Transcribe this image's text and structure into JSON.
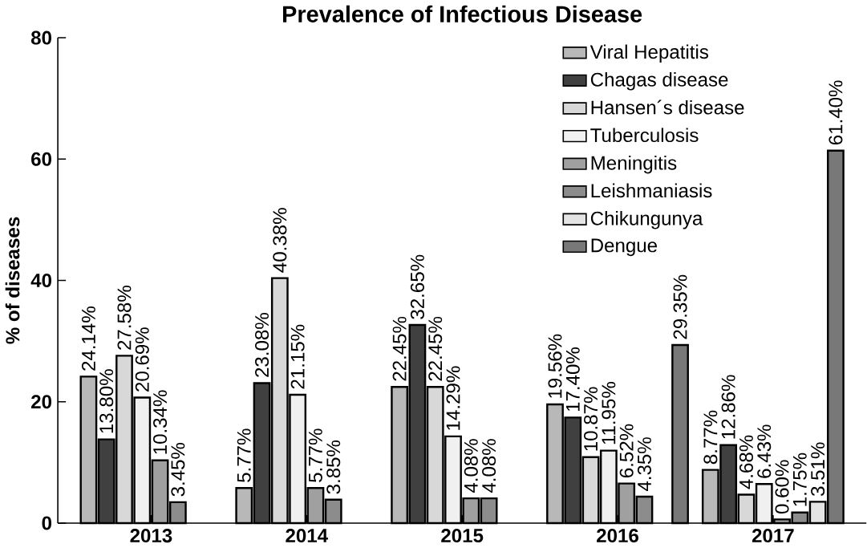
{
  "chart_data": {
    "type": "bar",
    "title": "Prevalence of Infectious Disease",
    "ylabel": "% of diseases",
    "categories": [
      "2013",
      "2014",
      "2015",
      "2016",
      "2017"
    ],
    "series": [
      {
        "name": "Viral Hepatitis",
        "color": "#b8b8b8",
        "values": [
          24.14,
          5.77,
          22.45,
          19.56,
          8.77
        ],
        "value_labels": [
          "24.14%",
          "5.77%",
          "22.45%",
          "19.56%",
          "8.77%"
        ]
      },
      {
        "name": "Chagas disease",
        "color": "#404040",
        "values": [
          13.8,
          23.08,
          32.65,
          17.4,
          12.86
        ],
        "value_labels": [
          "13.80%",
          "23.08%",
          "32.65%",
          "17.40%",
          "12.86%"
        ]
      },
      {
        "name": "Hansen´s disease",
        "color": "#d8d8d8",
        "values": [
          27.58,
          40.38,
          22.45,
          10.87,
          4.68
        ],
        "value_labels": [
          "27.58%",
          "40.38%",
          "22.45%",
          "10.87%",
          "4.68%"
        ]
      },
      {
        "name": "Tuberculosis",
        "color": "#f0f0f0",
        "values": [
          20.69,
          21.15,
          14.29,
          11.95,
          6.43
        ],
        "value_labels": [
          "20.69%",
          "21.15%",
          "14.29%",
          "11.95%",
          "6.43%"
        ]
      },
      {
        "name": "Meningitis",
        "color": "#a0a0a0",
        "values": [
          10.34,
          5.77,
          4.08,
          6.52,
          0.6
        ],
        "value_labels": [
          "10.34%",
          "5.77%",
          "4.08%",
          "6.52%",
          "0.60%"
        ]
      },
      {
        "name": "Leishmaniasis",
        "color": "#8c8c8c",
        "values": [
          3.45,
          3.85,
          4.08,
          4.35,
          1.75
        ],
        "value_labels": [
          "3.45%",
          "3.85%",
          "4.08%",
          "4.35%",
          "1.75%"
        ]
      },
      {
        "name": "Chikungunya",
        "color": "#e4e4e4",
        "values": [
          null,
          null,
          null,
          null,
          3.51
        ],
        "value_labels": [
          null,
          null,
          null,
          null,
          "3.51%"
        ]
      },
      {
        "name": "Dengue",
        "color": "#787878",
        "values": [
          null,
          null,
          null,
          29.35,
          61.4
        ],
        "value_labels": [
          null,
          null,
          null,
          "29.35%",
          "61.40%"
        ]
      }
    ],
    "ylim": [
      0,
      80
    ],
    "yticks": [
      0,
      20,
      40,
      60,
      80
    ],
    "grid": false,
    "legend": "top right"
  }
}
